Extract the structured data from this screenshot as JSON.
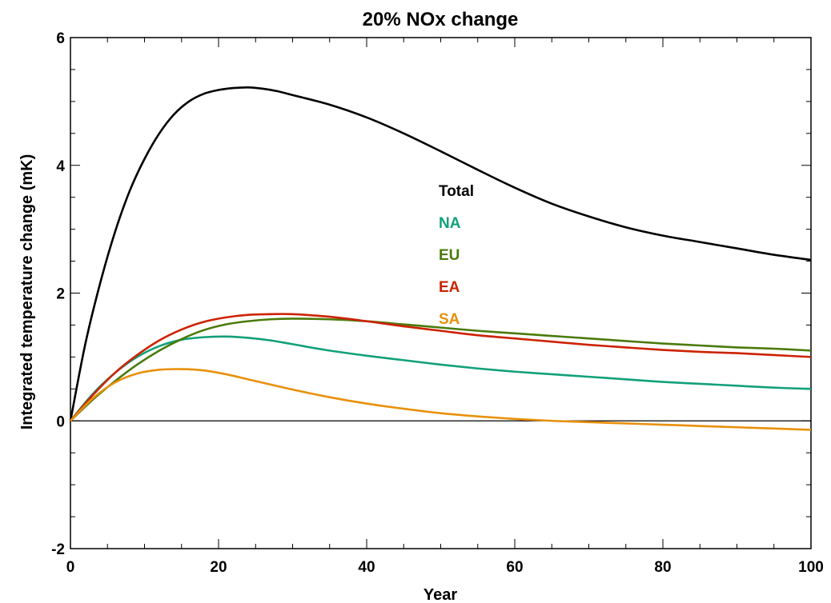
{
  "chart_data": {
    "type": "line",
    "title": "20% NOx change",
    "xlabel": "Year",
    "ylabel": "Integrated temperature change (mK)",
    "xlim": [
      0,
      100
    ],
    "ylim": [
      -2,
      6
    ],
    "xticks": [
      0,
      20,
      40,
      60,
      80,
      100
    ],
    "yticks": [
      -2,
      0,
      2,
      4,
      6
    ],
    "grid": false,
    "legend_position": "center",
    "zero_line": true,
    "series": [
      {
        "name": "Total",
        "color": "#000000",
        "x": [
          0,
          2,
          4,
          6,
          8,
          10,
          12,
          14,
          16,
          18,
          20,
          22,
          24,
          26,
          28,
          30,
          35,
          40,
          45,
          50,
          55,
          60,
          65,
          70,
          75,
          80,
          85,
          90,
          95,
          100
        ],
        "y": [
          0,
          1.2,
          2.15,
          2.95,
          3.6,
          4.1,
          4.5,
          4.8,
          5.0,
          5.12,
          5.18,
          5.21,
          5.22,
          5.2,
          5.16,
          5.1,
          4.95,
          4.75,
          4.5,
          4.22,
          3.93,
          3.65,
          3.4,
          3.2,
          3.03,
          2.9,
          2.8,
          2.7,
          2.6,
          2.52
        ]
      },
      {
        "name": "NA",
        "color": "#12a07a",
        "x": [
          0,
          3,
          6,
          9,
          12,
          15,
          18,
          21,
          24,
          27,
          30,
          35,
          40,
          45,
          50,
          55,
          60,
          65,
          70,
          75,
          80,
          85,
          90,
          95,
          100
        ],
        "y": [
          0,
          0.42,
          0.75,
          1.0,
          1.17,
          1.27,
          1.31,
          1.32,
          1.3,
          1.26,
          1.2,
          1.1,
          1.02,
          0.95,
          0.88,
          0.82,
          0.77,
          0.73,
          0.69,
          0.65,
          0.61,
          0.58,
          0.55,
          0.52,
          0.5
        ]
      },
      {
        "name": "EU",
        "color": "#4a7a0a",
        "x": [
          0,
          3,
          6,
          9,
          12,
          15,
          18,
          21,
          24,
          27,
          30,
          35,
          40,
          45,
          50,
          55,
          60,
          65,
          70,
          75,
          80,
          85,
          90,
          95,
          100
        ],
        "y": [
          0,
          0.33,
          0.62,
          0.88,
          1.1,
          1.28,
          1.42,
          1.51,
          1.56,
          1.59,
          1.6,
          1.59,
          1.56,
          1.51,
          1.46,
          1.41,
          1.37,
          1.33,
          1.29,
          1.25,
          1.21,
          1.18,
          1.15,
          1.13,
          1.1
        ]
      },
      {
        "name": "EA",
        "color": "#cc2200",
        "x": [
          0,
          3,
          6,
          9,
          12,
          15,
          18,
          21,
          24,
          27,
          30,
          35,
          40,
          45,
          50,
          55,
          60,
          65,
          70,
          75,
          80,
          85,
          90,
          95,
          100
        ],
        "y": [
          0,
          0.4,
          0.75,
          1.03,
          1.26,
          1.43,
          1.55,
          1.62,
          1.66,
          1.67,
          1.67,
          1.63,
          1.56,
          1.48,
          1.41,
          1.34,
          1.29,
          1.24,
          1.19,
          1.15,
          1.11,
          1.08,
          1.06,
          1.03,
          1.0
        ]
      },
      {
        "name": "SA",
        "color": "#e8900a",
        "x": [
          0,
          3,
          6,
          9,
          12,
          15,
          18,
          21,
          24,
          27,
          30,
          35,
          40,
          45,
          50,
          55,
          60,
          65,
          70,
          75,
          80,
          85,
          90,
          95,
          100
        ],
        "y": [
          0,
          0.35,
          0.6,
          0.74,
          0.8,
          0.81,
          0.79,
          0.73,
          0.65,
          0.57,
          0.49,
          0.37,
          0.27,
          0.19,
          0.12,
          0.07,
          0.03,
          0.0,
          -0.02,
          -0.04,
          -0.06,
          -0.08,
          -0.1,
          -0.12,
          -0.14
        ]
      }
    ]
  }
}
